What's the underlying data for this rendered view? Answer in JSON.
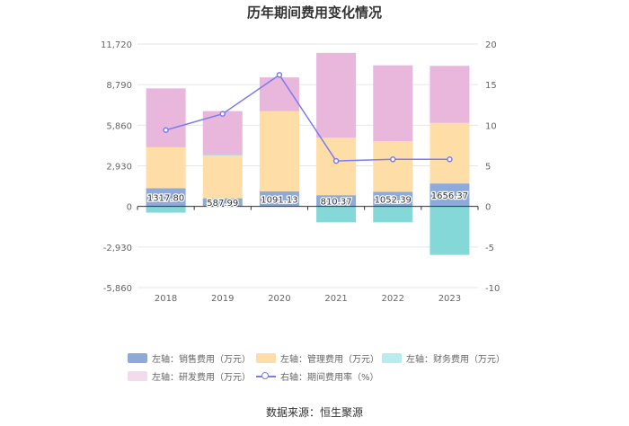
{
  "chart_data": {
    "type": "bar",
    "title": "历年期间费用变化情况",
    "categories": [
      "2018",
      "2019",
      "2020",
      "2021",
      "2022",
      "2023"
    ],
    "stacked": true,
    "left_axis": {
      "min": -5860,
      "max": 11720,
      "ticks": [
        "11,720",
        "8,790",
        "5,860",
        "2,930",
        "0",
        "-2,930",
        "-5,860"
      ]
    },
    "right_axis": {
      "min": -10,
      "max": 20,
      "ticks": [
        "20",
        "15",
        "10",
        "5",
        "0",
        "-5",
        "-10"
      ]
    },
    "series": [
      {
        "name": "销售费用",
        "legend_label": "左轴：销售费用（万元）",
        "axis": "left",
        "color": "#8eaadb",
        "values": [
          1317.8,
          587.99,
          1091.13,
          810.37,
          1052.39,
          1656.37
        ],
        "labels": [
          "1317.80",
          "587.99",
          "1091.13",
          "810.37",
          "1052.39",
          "1656.37"
        ]
      },
      {
        "name": "管理费用",
        "legend_label": "左轴：管理费用（万元）",
        "axis": "left",
        "color": "#ffdda6",
        "values": [
          2950,
          3100,
          5800,
          4150,
          3650,
          4370
        ]
      },
      {
        "name": "财务费用",
        "legend_label": "左轴：财务费用（万元）",
        "axis": "left",
        "color": "#85d8d8",
        "values": [
          -450,
          40,
          20,
          -1150,
          -1150,
          -3500
        ]
      },
      {
        "name": "研发费用",
        "legend_label": "左轴：研发费用（万元）",
        "axis": "left",
        "color": "#e8b7db",
        "values": [
          4250,
          3150,
          2400,
          6120,
          5480,
          4120
        ]
      },
      {
        "name": "期间费用率",
        "legend_label": "右轴：期间费用率（%）",
        "axis": "right",
        "type": "line",
        "color": "#7b7cf0",
        "values": [
          9.4,
          11.4,
          16.2,
          5.6,
          5.8,
          5.8
        ]
      }
    ]
  },
  "source": "数据来源：恒生聚源"
}
